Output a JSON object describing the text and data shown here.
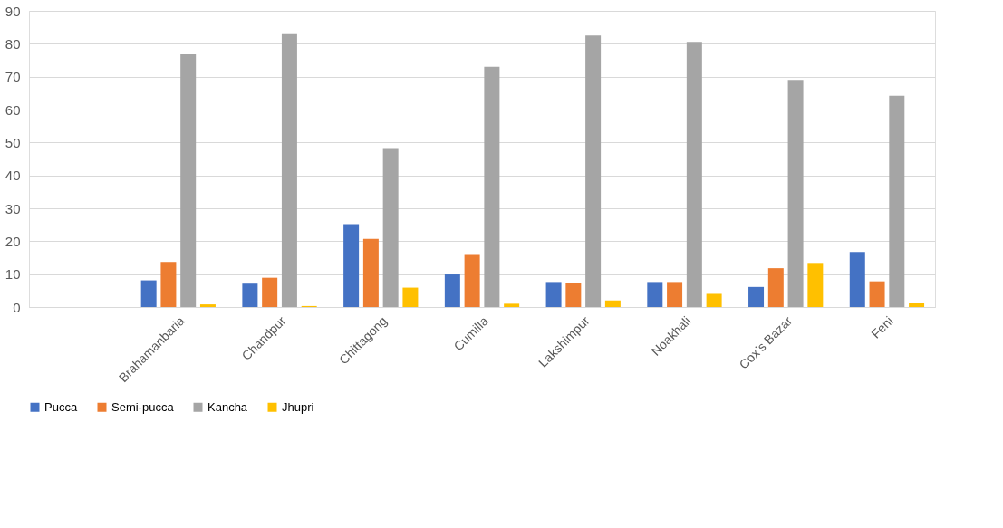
{
  "chart_data": {
    "type": "bar",
    "categories": [
      null,
      "Brahamanbaria",
      "Chandpur",
      "Chittagong",
      "Cumilla",
      "Lakshimpur",
      "Noakhali",
      "Cox’s Bazar",
      "Feni"
    ],
    "series": [
      {
        "name": "Pucca",
        "color": "#4472c4",
        "values": [
          null,
          8.1,
          7.1,
          25.2,
          9.9,
          7.6,
          7.6,
          6.1,
          16.7
        ]
      },
      {
        "name": "Semi-pucca",
        "color": "#ed7d31",
        "values": [
          null,
          13.7,
          8.9,
          20.7,
          15.8,
          7.4,
          7.6,
          11.8,
          7.8
        ]
      },
      {
        "name": "Kancha",
        "color": "#a5a5a5",
        "values": [
          null,
          76.8,
          83.2,
          48.3,
          73.0,
          82.5,
          80.6,
          69.0,
          64.2
        ]
      },
      {
        "name": "Jhupri",
        "color": "#ffc000",
        "values": [
          null,
          0.8,
          0.3,
          5.9,
          1.0,
          2.0,
          4.0,
          13.4,
          1.1
        ]
      }
    ],
    "ylim": [
      0,
      90
    ],
    "yticks": [
      0,
      10,
      20,
      30,
      40,
      50,
      60,
      70,
      80,
      90
    ],
    "grid": "y",
    "legend": "bottom"
  }
}
